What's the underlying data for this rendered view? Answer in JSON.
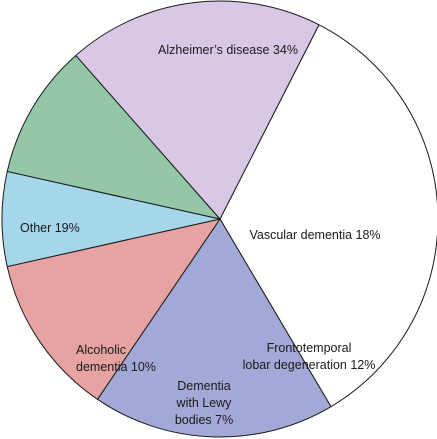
{
  "chart_data": {
    "type": "pie",
    "title": "",
    "slices": [
      {
        "label": "Alzheimer’s disease 34%",
        "value": 34,
        "color": "#ffffff"
      },
      {
        "label": "Vascular dementia 18%",
        "value": 18,
        "color": "#a3a9d6"
      },
      {
        "label": "Frontotemporal lobar degeneration 12%",
        "label_lines": [
          "Frontotemporal",
          "lobar degeneration 12%"
        ],
        "value": 12,
        "color": "#e7a3a2"
      },
      {
        "label": "Dementia with Lewy bodies 7%",
        "label_lines": [
          "Dementia",
          "with Lewy",
          "bodies 7%"
        ],
        "value": 7,
        "color": "#a5d6ea"
      },
      {
        "label": "Alcoholic dementia 10%",
        "label_lines": [
          "Alcoholic",
          "dementia 10%"
        ],
        "value": 10,
        "color": "#93c7a7"
      },
      {
        "label": "Other 19%",
        "value": 19,
        "color": "#d8c8e6"
      }
    ],
    "start_angle_deg": -63,
    "direction": "clockwise",
    "edge_color": "#1a1a1a",
    "legend": "none"
  }
}
